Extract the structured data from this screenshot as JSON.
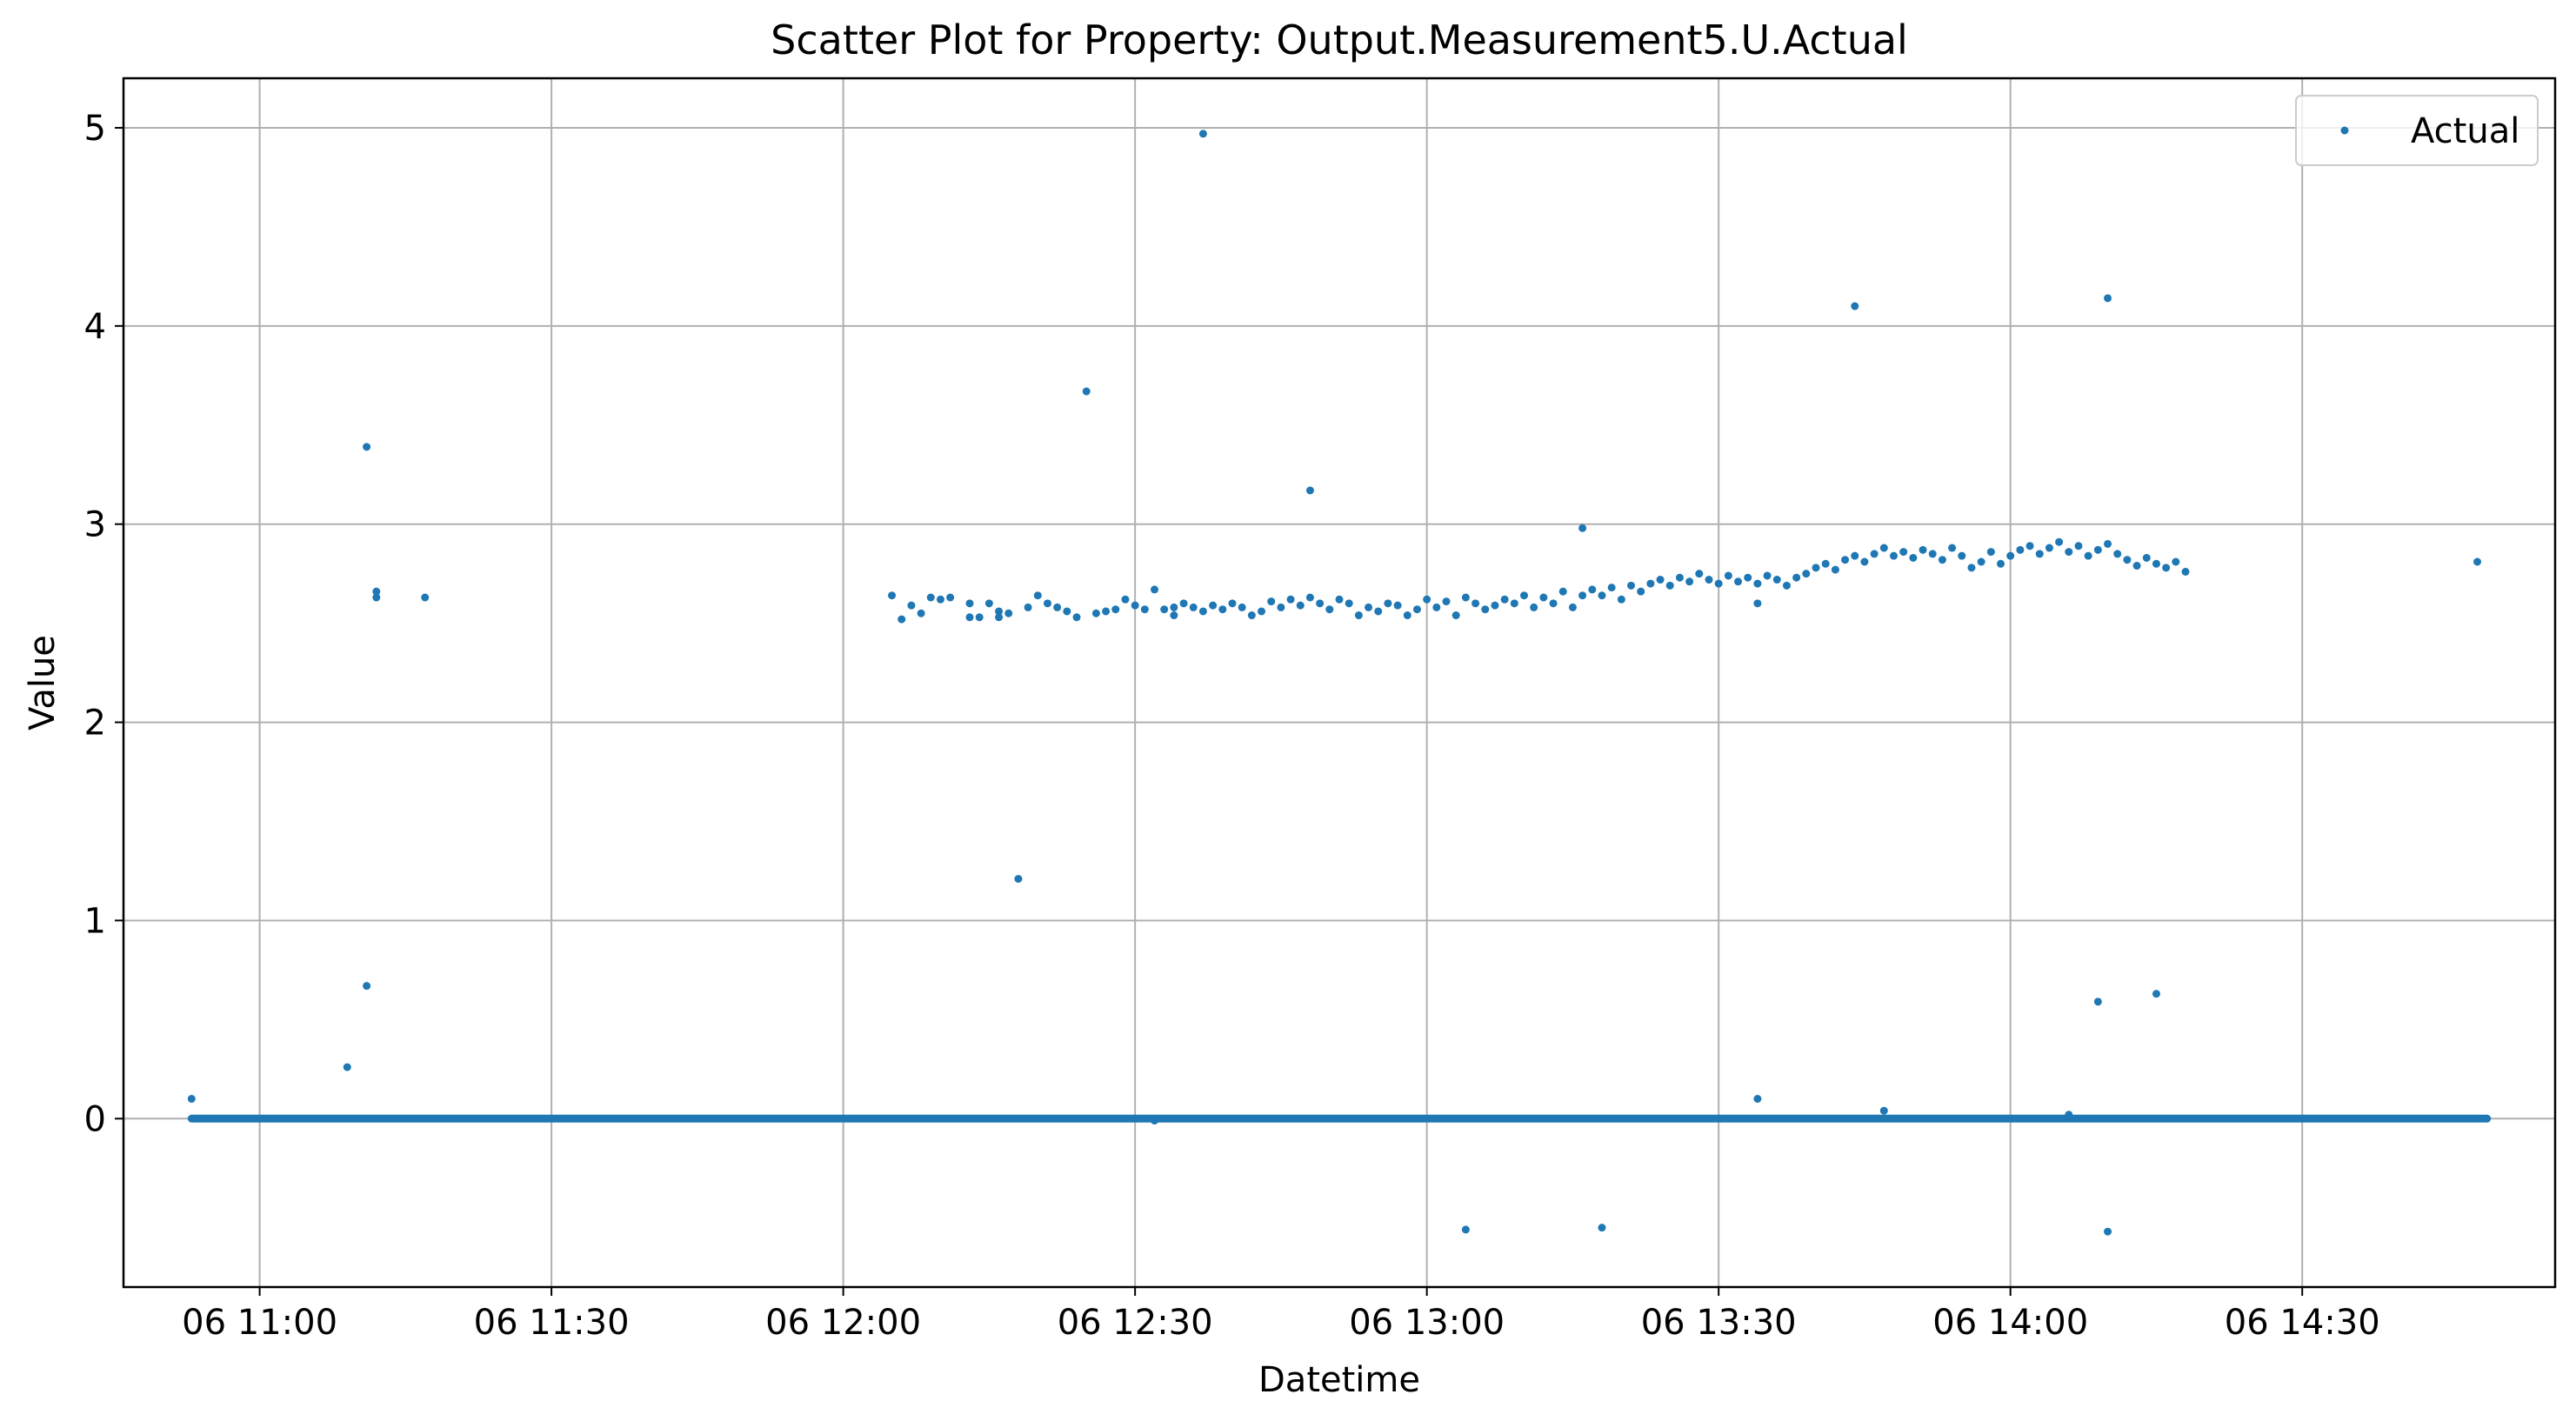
{
  "chart_data": {
    "type": "scatter",
    "title": "Scatter Plot for Property: Output.Measurement5.U.Actual",
    "xlabel": "Datetime",
    "ylabel": "Value",
    "x_axis_type": "datetime",
    "xlim": [
      "06 10:46",
      "06 14:56"
    ],
    "ylim": [
      -0.85,
      5.25
    ],
    "x_ticks": [
      {
        "t": "06 11:00",
        "label": "06 11:00"
      },
      {
        "t": "06 11:30",
        "label": "06 11:30"
      },
      {
        "t": "06 12:00",
        "label": "06 12:00"
      },
      {
        "t": "06 12:30",
        "label": "06 12:30"
      },
      {
        "t": "06 13:00",
        "label": "06 13:00"
      },
      {
        "t": "06 13:30",
        "label": "06 13:30"
      },
      {
        "t": "06 14:00",
        "label": "06 14:00"
      },
      {
        "t": "06 14:30",
        "label": "06 14:30"
      }
    ],
    "y_ticks": [
      0,
      1,
      2,
      3,
      4,
      5
    ],
    "y_tick_labels": [
      "0",
      "1",
      "2",
      "3",
      "4",
      "5"
    ],
    "grid": true,
    "legend": {
      "position": "top-right",
      "entries": [
        "Actual"
      ]
    },
    "marker_color": "#1f77b4",
    "baseline": {
      "start": "06 10:53",
      "end": "06 14:49",
      "y": 0
    },
    "series": [
      {
        "name": "Actual",
        "points": [
          [
            "06 10:53",
            0.1
          ],
          [
            "06 11:09",
            0.26
          ],
          [
            "06 11:11",
            0.67
          ],
          [
            "06 11:11",
            3.39
          ],
          [
            "06 11:12",
            2.66
          ],
          [
            "06 11:12",
            2.63
          ],
          [
            "06 11:17",
            2.63
          ],
          [
            "06 12:18",
            1.21
          ],
          [
            "06 12:25",
            3.67
          ],
          [
            "06 12:32",
            -0.01
          ],
          [
            "06 12:37",
            4.97
          ],
          [
            "06 12:48",
            3.17
          ],
          [
            "06 13:04",
            -0.56
          ],
          [
            "06 13:16",
            2.98
          ],
          [
            "06 13:18",
            -0.55
          ],
          [
            "06 13:34",
            0.1
          ],
          [
            "06 13:34",
            2.6
          ],
          [
            "06 13:44",
            4.1
          ],
          [
            "06 13:47",
            0.04
          ],
          [
            "06 14:06",
            0.02
          ],
          [
            "06 14:09",
            0.59
          ],
          [
            "06 14:10",
            4.14
          ],
          [
            "06 14:10",
            -0.57
          ],
          [
            "06 14:15",
            0.63
          ],
          [
            "06 14:48",
            2.81
          ],
          [
            "06 12:05",
            2.64
          ],
          [
            "06 12:06",
            2.52
          ],
          [
            "06 12:07",
            2.59
          ],
          [
            "06 12:08",
            2.55
          ],
          [
            "06 12:09",
            2.63
          ],
          [
            "06 12:10",
            2.62
          ],
          [
            "06 12:11",
            2.63
          ],
          [
            "06 12:13",
            2.6
          ],
          [
            "06 12:13",
            2.53
          ],
          [
            "06 12:14",
            2.53
          ],
          [
            "06 12:15",
            2.6
          ],
          [
            "06 12:16",
            2.56
          ],
          [
            "06 12:16",
            2.53
          ],
          [
            "06 12:17",
            2.55
          ],
          [
            "06 12:19",
            2.58
          ],
          [
            "06 12:20",
            2.64
          ],
          [
            "06 12:21",
            2.6
          ],
          [
            "06 12:22",
            2.58
          ],
          [
            "06 12:23",
            2.56
          ],
          [
            "06 12:24",
            2.53
          ],
          [
            "06 12:26",
            2.55
          ],
          [
            "06 12:27",
            2.56
          ],
          [
            "06 12:28",
            2.57
          ],
          [
            "06 12:29",
            2.62
          ],
          [
            "06 12:30",
            2.59
          ],
          [
            "06 12:31",
            2.57
          ],
          [
            "06 12:32",
            2.67
          ],
          [
            "06 12:33",
            2.57
          ],
          [
            "06 12:34",
            2.58
          ],
          [
            "06 12:34",
            2.54
          ],
          [
            "06 12:35",
            2.6
          ],
          [
            "06 12:36",
            2.58
          ],
          [
            "06 12:37",
            2.56
          ],
          [
            "06 12:38",
            2.59
          ],
          [
            "06 12:39",
            2.57
          ],
          [
            "06 12:40",
            2.6
          ],
          [
            "06 12:41",
            2.58
          ],
          [
            "06 12:42",
            2.54
          ],
          [
            "06 12:43",
            2.56
          ],
          [
            "06 12:44",
            2.61
          ],
          [
            "06 12:45",
            2.58
          ],
          [
            "06 12:46",
            2.62
          ],
          [
            "06 12:47",
            2.59
          ],
          [
            "06 12:48",
            2.63
          ],
          [
            "06 12:49",
            2.6
          ],
          [
            "06 12:50",
            2.57
          ],
          [
            "06 12:51",
            2.62
          ],
          [
            "06 12:52",
            2.6
          ],
          [
            "06 12:53",
            2.54
          ],
          [
            "06 12:54",
            2.58
          ],
          [
            "06 12:55",
            2.56
          ],
          [
            "06 12:56",
            2.6
          ],
          [
            "06 12:57",
            2.59
          ],
          [
            "06 12:58",
            2.54
          ],
          [
            "06 12:59",
            2.57
          ],
          [
            "06 13:00",
            2.62
          ],
          [
            "06 13:01",
            2.58
          ],
          [
            "06 13:02",
            2.61
          ],
          [
            "06 13:03",
            2.54
          ],
          [
            "06 13:04",
            2.63
          ],
          [
            "06 13:05",
            2.6
          ],
          [
            "06 13:06",
            2.57
          ],
          [
            "06 13:07",
            2.59
          ],
          [
            "06 13:08",
            2.62
          ],
          [
            "06 13:09",
            2.6
          ],
          [
            "06 13:10",
            2.64
          ],
          [
            "06 13:11",
            2.58
          ],
          [
            "06 13:12",
            2.63
          ],
          [
            "06 13:13",
            2.6
          ],
          [
            "06 13:14",
            2.66
          ],
          [
            "06 13:15",
            2.58
          ],
          [
            "06 13:16",
            2.64
          ],
          [
            "06 13:17",
            2.67
          ],
          [
            "06 13:18",
            2.64
          ],
          [
            "06 13:19",
            2.68
          ],
          [
            "06 13:20",
            2.62
          ],
          [
            "06 13:21",
            2.69
          ],
          [
            "06 13:22",
            2.66
          ],
          [
            "06 13:23",
            2.7
          ],
          [
            "06 13:24",
            2.72
          ],
          [
            "06 13:25",
            2.69
          ],
          [
            "06 13:26",
            2.73
          ],
          [
            "06 13:27",
            2.71
          ],
          [
            "06 13:28",
            2.75
          ],
          [
            "06 13:29",
            2.72
          ],
          [
            "06 13:30",
            2.7
          ],
          [
            "06 13:31",
            2.74
          ],
          [
            "06 13:32",
            2.71
          ],
          [
            "06 13:33",
            2.73
          ],
          [
            "06 13:34",
            2.7
          ],
          [
            "06 13:35",
            2.74
          ],
          [
            "06 13:36",
            2.72
          ],
          [
            "06 13:37",
            2.69
          ],
          [
            "06 13:38",
            2.73
          ],
          [
            "06 13:39",
            2.75
          ],
          [
            "06 13:40",
            2.78
          ],
          [
            "06 13:41",
            2.8
          ],
          [
            "06 13:42",
            2.77
          ],
          [
            "06 13:43",
            2.82
          ],
          [
            "06 13:44",
            2.84
          ],
          [
            "06 13:45",
            2.81
          ],
          [
            "06 13:46",
            2.85
          ],
          [
            "06 13:47",
            2.88
          ],
          [
            "06 13:48",
            2.84
          ],
          [
            "06 13:49",
            2.86
          ],
          [
            "06 13:50",
            2.83
          ],
          [
            "06 13:51",
            2.87
          ],
          [
            "06 13:52",
            2.85
          ],
          [
            "06 13:53",
            2.82
          ],
          [
            "06 13:54",
            2.88
          ],
          [
            "06 13:55",
            2.84
          ],
          [
            "06 13:56",
            2.78
          ],
          [
            "06 13:57",
            2.81
          ],
          [
            "06 13:58",
            2.86
          ],
          [
            "06 13:59",
            2.8
          ],
          [
            "06 14:00",
            2.84
          ],
          [
            "06 14:01",
            2.87
          ],
          [
            "06 14:02",
            2.89
          ],
          [
            "06 14:03",
            2.85
          ],
          [
            "06 14:04",
            2.88
          ],
          [
            "06 14:05",
            2.91
          ],
          [
            "06 14:06",
            2.86
          ],
          [
            "06 14:07",
            2.89
          ],
          [
            "06 14:08",
            2.84
          ],
          [
            "06 14:09",
            2.87
          ],
          [
            "06 14:10",
            2.9
          ],
          [
            "06 14:11",
            2.85
          ],
          [
            "06 14:12",
            2.82
          ],
          [
            "06 14:13",
            2.79
          ],
          [
            "06 14:14",
            2.83
          ],
          [
            "06 14:15",
            2.8
          ],
          [
            "06 14:16",
            2.78
          ],
          [
            "06 14:17",
            2.81
          ],
          [
            "06 14:18",
            2.76
          ]
        ]
      }
    ]
  }
}
